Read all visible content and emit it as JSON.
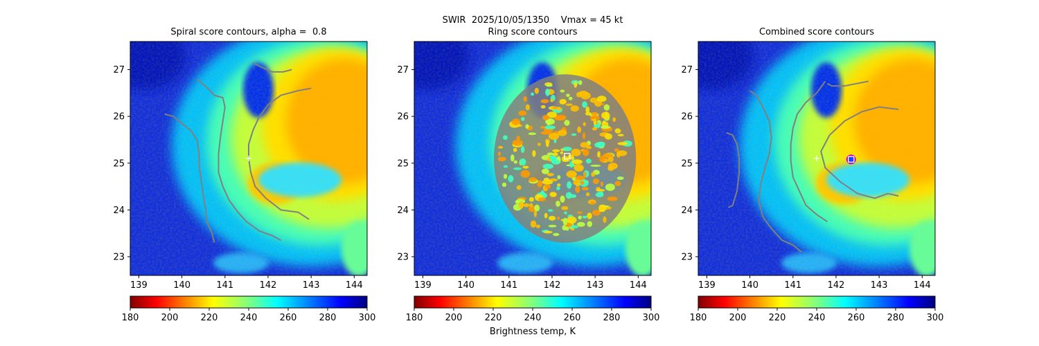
{
  "suptitle": "SWIR  2025/10/05/1350    Vmax = 45 kt",
  "colorbar_label": "Brightness temp, K",
  "colormap": "jet_r",
  "chart_data": [
    {
      "type": "heatmap",
      "title": "Spiral score contours, alpha =  0.8",
      "xlim": [
        138.8,
        144.3
      ],
      "ylim": [
        22.6,
        27.6
      ],
      "xticks": [
        "139",
        "140",
        "141",
        "142",
        "143",
        "144"
      ],
      "yticks": [
        "23",
        "24",
        "25",
        "26",
        "27"
      ],
      "colorbar": {
        "range": [
          180,
          300
        ],
        "ticks": [
          "180",
          "200",
          "220",
          "240",
          "260",
          "280",
          "300"
        ]
      },
      "markers": [
        {
          "shape": "plus",
          "color": "#ffffff",
          "x": 141.55,
          "y": 25.1
        }
      ],
      "contour_color": "#808080",
      "contours": [
        [
          [
            139.6,
            26.05
          ],
          [
            139.8,
            26.0
          ],
          [
            140.0,
            25.85
          ],
          [
            140.2,
            25.7
          ],
          [
            140.35,
            25.5
          ],
          [
            140.4,
            25.2
          ],
          [
            140.4,
            24.95
          ],
          [
            140.45,
            24.6
          ],
          [
            140.5,
            24.3
          ],
          [
            140.55,
            24.0
          ],
          [
            140.6,
            23.7
          ],
          [
            140.7,
            23.5
          ],
          [
            140.75,
            23.3
          ]
        ],
        [
          [
            140.35,
            26.8
          ],
          [
            140.6,
            26.6
          ],
          [
            140.75,
            26.45
          ],
          [
            140.95,
            26.4
          ],
          [
            141.0,
            26.2
          ],
          [
            140.95,
            25.9
          ],
          [
            140.9,
            25.6
          ],
          [
            140.85,
            25.2
          ],
          [
            140.85,
            24.8
          ],
          [
            140.95,
            24.5
          ],
          [
            141.1,
            24.2
          ],
          [
            141.3,
            23.95
          ],
          [
            141.5,
            23.75
          ],
          [
            141.8,
            23.55
          ],
          [
            142.1,
            23.45
          ],
          [
            142.3,
            23.35
          ]
        ],
        [
          [
            143.0,
            26.6
          ],
          [
            142.7,
            26.55
          ],
          [
            142.3,
            26.45
          ],
          [
            142.0,
            26.25
          ],
          [
            141.8,
            26.0
          ],
          [
            141.65,
            25.7
          ],
          [
            141.55,
            25.4
          ],
          [
            141.55,
            25.1
          ],
          [
            141.6,
            24.8
          ],
          [
            141.7,
            24.5
          ],
          [
            141.95,
            24.25
          ],
          [
            142.3,
            24.0
          ],
          [
            142.7,
            23.95
          ],
          [
            142.95,
            23.8
          ]
        ],
        [
          [
            142.55,
            27.0
          ],
          [
            142.35,
            26.95
          ],
          [
            142.1,
            26.95
          ],
          [
            141.85,
            27.05
          ],
          [
            141.65,
            27.15
          ]
        ]
      ]
    },
    {
      "type": "heatmap",
      "title": "Ring score contours",
      "xlim": [
        138.8,
        144.3
      ],
      "ylim": [
        22.6,
        27.6
      ],
      "xticks": [
        "139",
        "140",
        "141",
        "142",
        "143",
        "144"
      ],
      "yticks": [
        "23",
        "24",
        "25",
        "26",
        "27"
      ],
      "colorbar": {
        "range": [
          180,
          300
        ],
        "ticks": [
          "180",
          "200",
          "220",
          "240",
          "260",
          "280",
          "300"
        ]
      },
      "markers": [
        {
          "shape": "square",
          "color": "#ffffff",
          "x": 142.35,
          "y": 25.15
        }
      ],
      "contour_color": "#808080",
      "ring_region": {
        "cx": 142.3,
        "cy": 25.1,
        "rx": 1.65,
        "ry": 1.8
      }
    },
    {
      "type": "heatmap",
      "title": "Combined score contours",
      "xlim": [
        138.8,
        144.3
      ],
      "ylim": [
        22.6,
        27.6
      ],
      "xticks": [
        "139",
        "140",
        "141",
        "142",
        "143",
        "144"
      ],
      "yticks": [
        "23",
        "24",
        "25",
        "26",
        "27"
      ],
      "colorbar": {
        "range": [
          180,
          300
        ],
        "ticks": [
          "180",
          "200",
          "220",
          "240",
          "260",
          "280",
          "300"
        ]
      },
      "markers": [
        {
          "shape": "plus",
          "color": "#ffffff",
          "x": 141.55,
          "y": 25.1
        },
        {
          "shape": "circle",
          "color": "#d000d0",
          "x": 142.35,
          "y": 25.08
        },
        {
          "shape": "square",
          "color": "#ffffff",
          "x": 142.35,
          "y": 25.08
        }
      ],
      "contour_color": "#808080",
      "contours": [
        [
          [
            139.45,
            25.65
          ],
          [
            139.6,
            25.6
          ],
          [
            139.7,
            25.4
          ],
          [
            139.75,
            25.1
          ],
          [
            139.75,
            24.8
          ],
          [
            139.7,
            24.4
          ],
          [
            139.6,
            24.1
          ],
          [
            139.5,
            24.05
          ]
        ],
        [
          [
            140.0,
            26.55
          ],
          [
            140.15,
            26.45
          ],
          [
            140.3,
            26.2
          ],
          [
            140.45,
            25.9
          ],
          [
            140.5,
            25.55
          ],
          [
            140.45,
            25.2
          ],
          [
            140.35,
            24.9
          ],
          [
            140.25,
            24.55
          ],
          [
            140.2,
            24.2
          ],
          [
            140.3,
            23.85
          ],
          [
            140.5,
            23.6
          ],
          [
            140.75,
            23.35
          ],
          [
            141.0,
            23.25
          ],
          [
            141.2,
            23.1
          ]
        ],
        [
          [
            141.75,
            26.75
          ],
          [
            141.55,
            26.5
          ],
          [
            141.3,
            26.3
          ],
          [
            141.1,
            26.05
          ],
          [
            141.0,
            25.75
          ],
          [
            140.95,
            25.4
          ],
          [
            140.95,
            25.05
          ],
          [
            141.0,
            24.7
          ],
          [
            141.15,
            24.4
          ],
          [
            141.3,
            24.1
          ],
          [
            141.55,
            23.9
          ],
          [
            141.8,
            23.75
          ]
        ],
        [
          [
            143.45,
            26.15
          ],
          [
            143.0,
            26.2
          ],
          [
            142.6,
            26.1
          ],
          [
            142.2,
            25.9
          ],
          [
            141.85,
            25.6
          ],
          [
            141.65,
            25.25
          ],
          [
            141.75,
            24.9
          ],
          [
            142.1,
            24.6
          ],
          [
            142.5,
            24.35
          ],
          [
            142.9,
            24.25
          ],
          [
            143.2,
            24.35
          ],
          [
            143.45,
            24.3
          ]
        ],
        [
          [
            142.75,
            26.75
          ],
          [
            142.2,
            26.65
          ],
          [
            141.9,
            26.65
          ],
          [
            141.8,
            26.7
          ]
        ]
      ]
    }
  ]
}
